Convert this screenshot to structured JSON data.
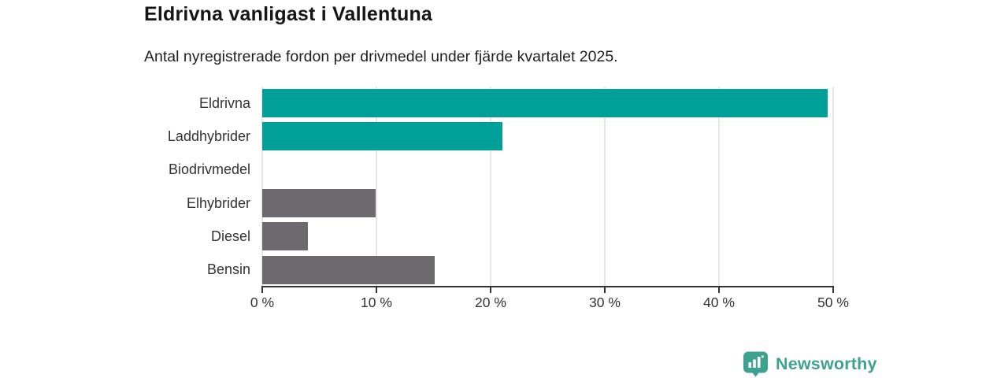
{
  "header": {
    "title": "Eldrivna vanligast i Vallentuna",
    "subtitle": "Antal nyregistrerade fordon per drivmedel under fjärde kvartalet 2025."
  },
  "chart_data": {
    "type": "bar",
    "orientation": "horizontal",
    "title": "Eldrivna vanligast i Vallentuna",
    "subtitle": "Antal nyregistrerade fordon per drivmedel under fjärde kvartalet 2025.",
    "categories": [
      "Eldrivna",
      "Laddhybrider",
      "Biodrivmedel",
      "Elhybrider",
      "Diesel",
      "Bensin"
    ],
    "values": [
      49.5,
      21.0,
      0,
      9.9,
      4.0,
      15.1
    ],
    "bar_colors": [
      "#00a099",
      "#00a099",
      "#6c6a6e",
      "#6c6a6e",
      "#6c6a6e",
      "#6c6a6e"
    ],
    "xlim": [
      0,
      50
    ],
    "x_ticks": [
      0,
      10,
      20,
      30,
      40,
      50
    ],
    "x_tick_labels": [
      "0 %",
      "10 %",
      "20 %",
      "30 %",
      "40 %",
      "50 %"
    ],
    "grid": "vertical-gridlines-on",
    "legend": "none"
  },
  "colors": {
    "accent_teal": "#00a099",
    "neutral_gray": "#6c6a6e",
    "gridline": "#e7e7e7",
    "axis": "#333333",
    "logo_teal": "#3fa190"
  },
  "branding": {
    "logo_text": "Newsworthy",
    "logo_icon": "speech-bubble-bar-chart"
  }
}
